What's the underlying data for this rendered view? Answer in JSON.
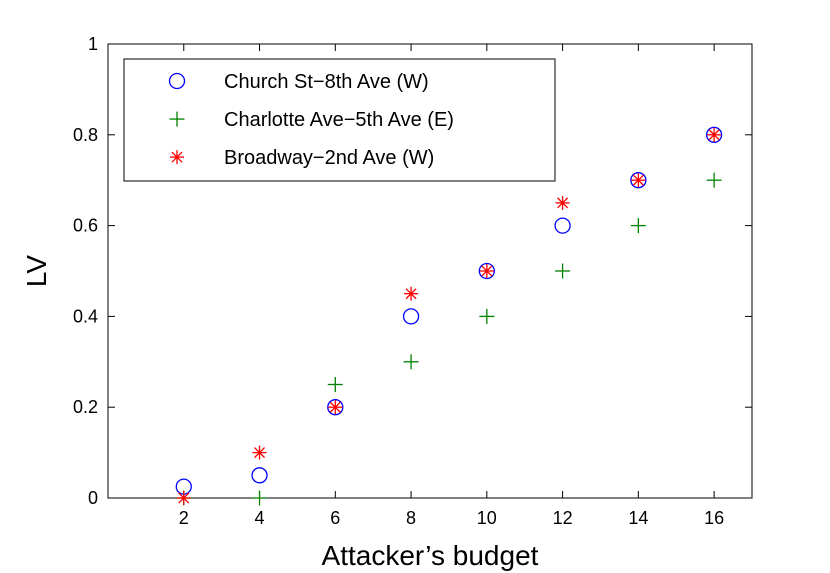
{
  "chart_data": {
    "type": "scatter",
    "title": "",
    "xlabel": "Attacker’s budget",
    "ylabel": "LV",
    "xlim": [
      0,
      17
    ],
    "ylim": [
      0,
      1
    ],
    "xticks": [
      2,
      4,
      6,
      8,
      10,
      12,
      14,
      16
    ],
    "xtick_labels": [
      "2",
      "4",
      "6",
      "8",
      "10",
      "12",
      "14",
      "16"
    ],
    "yticks": [
      0,
      0.2,
      0.4,
      0.6,
      0.8,
      1
    ],
    "ytick_labels": [
      "0",
      "0.2",
      "0.4",
      "0.6",
      "0.8",
      "1"
    ],
    "grid": false,
    "legend_position": "top-left",
    "series": [
      {
        "name": "Church St−8th Ave (W)",
        "marker": "circle",
        "color": "#0000ff",
        "x": [
          2,
          4,
          6,
          8,
          10,
          12,
          14,
          16
        ],
        "y": [
          0.025,
          0.05,
          0.2,
          0.4,
          0.5,
          0.6,
          0.7,
          0.8
        ]
      },
      {
        "name": "Charlotte Ave−5th Ave (E)",
        "marker": "plus",
        "color": "#008000",
        "x": [
          2,
          4,
          6,
          8,
          10,
          12,
          14,
          16
        ],
        "y": [
          0,
          0,
          0.25,
          0.3,
          0.4,
          0.5,
          0.6,
          0.7
        ]
      },
      {
        "name": "Broadway−2nd Ave (W)",
        "marker": "star",
        "color": "#ff0000",
        "x": [
          2,
          4,
          6,
          8,
          10,
          12,
          14,
          16
        ],
        "y": [
          0,
          0.1,
          0.2,
          0.45,
          0.5,
          0.65,
          0.7,
          0.8
        ]
      }
    ]
  }
}
